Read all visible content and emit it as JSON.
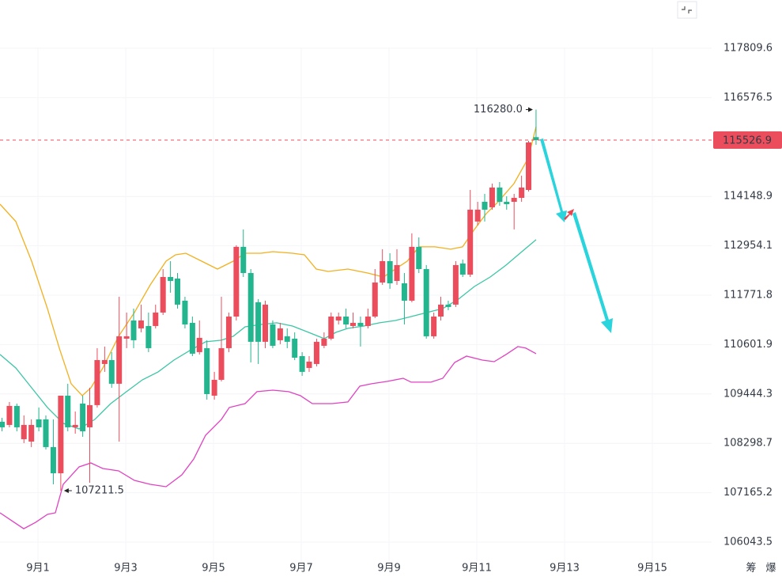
{
  "chart_data": {
    "type": "candlestick",
    "log_scale": true,
    "grid": true,
    "up_color": "#eb4d5c",
    "down_color": "#22b58e",
    "xlim": [
      0.135,
      16.351
    ],
    "ylim": [
      105597,
      119028
    ],
    "xticks": [
      {
        "value": 1,
        "label": "9月1"
      },
      {
        "value": 3,
        "label": "9月3"
      },
      {
        "value": 5,
        "label": "9月5"
      },
      {
        "value": 7,
        "label": "9月7"
      },
      {
        "value": 9,
        "label": "9月9"
      },
      {
        "value": 11,
        "label": "9月11"
      },
      {
        "value": 13,
        "label": "9月13"
      },
      {
        "value": 15,
        "label": "9月15"
      }
    ],
    "yticks": [
      117809.6,
      116576.5,
      114148.9,
      112954.1,
      111771.8,
      110601.9,
      109444.3,
      108298.7,
      107165.2,
      106043.5
    ],
    "last_price": 115526.9,
    "last_price_color": "#eb4d5c",
    "annotations": [
      {
        "text": "116280.0",
        "value": 116280
      },
      {
        "text": "107211.5",
        "value": 107211.5
      }
    ],
    "footer_buttons": [
      "筹",
      "爆"
    ],
    "x": [
      0.18,
      0.35,
      0.52,
      0.68,
      0.85,
      1.02,
      1.18,
      1.35,
      1.52,
      1.68,
      1.85,
      2.02,
      2.18,
      2.35,
      2.52,
      2.68,
      2.85,
      3.02,
      3.18,
      3.35,
      3.52,
      3.68,
      3.85,
      4.02,
      4.18,
      4.35,
      4.52,
      4.68,
      4.85,
      5.02,
      5.18,
      5.35,
      5.52,
      5.68,
      5.85,
      6.02,
      6.18,
      6.35,
      6.52,
      6.68,
      6.85,
      7.02,
      7.18,
      7.35,
      7.52,
      7.68,
      7.85,
      8.02,
      8.18,
      8.35,
      8.52,
      8.68,
      8.85,
      9.02,
      9.18,
      9.35,
      9.52,
      9.68,
      9.85,
      10.02,
      10.18,
      10.35,
      10.52,
      10.68,
      10.85,
      11.02,
      11.18,
      11.35,
      11.52,
      11.68,
      11.85,
      12.02,
      12.18,
      12.35
    ],
    "open": [
      108797,
      108724,
      109165,
      108394,
      108339,
      108853,
      108853,
      108212,
      107610,
      109404,
      108669,
      109220,
      108669,
      109184,
      110145,
      110237,
      109682,
      110741,
      111171,
      110984,
      111040,
      111040,
      111359,
      112206,
      112168,
      111641,
      111115,
      110424,
      110517,
      109404,
      109774,
      110517,
      111264,
      112929,
      112301,
      111604,
      110667,
      111077,
      110704,
      110797,
      110741,
      110330,
      110052,
      110145,
      110573,
      110741,
      111171,
      111264,
      111040,
      111115,
      111040,
      111264,
      112074,
      112586,
      112112,
      112055,
      111641,
      112929,
      112396,
      110797,
      111264,
      111547,
      111547,
      112529,
      112263,
      113540,
      114018,
      113885,
      114365,
      114018,
      114018,
      114114,
      114307,
      115600
    ],
    "high": [
      108889,
      109257,
      109220,
      108944,
      108853,
      109129,
      108944,
      108853,
      109404,
      109682,
      109036,
      109404,
      109589,
      110517,
      110555,
      110424,
      111735,
      111359,
      111453,
      111547,
      111359,
      111547,
      112396,
      112586,
      112301,
      111735,
      111264,
      111171,
      110704,
      109960,
      111735,
      111359,
      112967,
      113349,
      112396,
      111679,
      111641,
      111171,
      111115,
      110984,
      110891,
      110424,
      110330,
      110741,
      110891,
      111359,
      111359,
      111453,
      111359,
      111264,
      111453,
      112396,
      112872,
      112776,
      112872,
      112301,
      113253,
      113157,
      112491,
      111359,
      111735,
      111641,
      112586,
      112624,
      114307,
      114018,
      114211,
      114462,
      114500,
      114153,
      114211,
      114655,
      115509,
      116280
    ],
    "low": [
      108577,
      108669,
      108577,
      108303,
      108212,
      108577,
      108157,
      107357,
      107211.5,
      108577,
      108522,
      108449,
      107393,
      109129,
      109960,
      109589,
      108339,
      110517,
      110517,
      110891,
      110424,
      110984,
      111302,
      111830,
      111453,
      110984,
      110330,
      110368,
      109312,
      109312,
      109737,
      110424,
      111171,
      112206,
      110182,
      110145,
      110517,
      110517,
      110611,
      110517,
      110237,
      109867,
      109960,
      110089,
      110517,
      110704,
      111077,
      110984,
      110984,
      110555,
      110984,
      111227,
      112018,
      111924,
      112018,
      111077,
      111604,
      112301,
      110741,
      110741,
      111171,
      111415,
      111491,
      112206,
      112206,
      113445,
      113540,
      113827,
      113923,
      113827,
      113349,
      114018,
      114269,
      115412
    ],
    "close": [
      108669,
      109165,
      108669,
      108724,
      108724,
      108669,
      108212,
      107610,
      109404,
      108669,
      108724,
      108577,
      109184,
      110237,
      110237,
      109682,
      110797,
      110797,
      110704,
      111171,
      110517,
      111359,
      112206,
      112112,
      111547,
      111077,
      110387,
      110760,
      109441,
      109774,
      110517,
      111264,
      112929,
      112301,
      110667,
      110667,
      111547,
      110573,
      110984,
      110667,
      110293,
      109960,
      110200,
      110667,
      110741,
      111264,
      111264,
      111077,
      111115,
      111040,
      111264,
      112074,
      112586,
      112055,
      112491,
      111641,
      112929,
      112396,
      110797,
      111264,
      111547,
      111491,
      112491,
      112263,
      113827,
      113827,
      113827,
      114365,
      114018,
      113961,
      114114,
      114365,
      115470,
      115526.9
    ],
    "series": [
      {
        "color": "#f2b01e",
        "x": [
          0.135,
          0.495,
          0.856,
          1.216,
          1.486,
          1.757,
          2.009,
          2.207,
          2.477,
          2.838,
          3.198,
          3.559,
          3.919,
          4.135,
          4.369,
          4.73,
          5.09,
          5.45,
          5.721,
          6.081,
          6.351,
          6.802,
          7.072,
          7.342,
          7.613,
          8.063,
          8.514,
          8.874,
          9.144,
          9.414,
          9.685,
          10.045,
          10.405,
          10.676,
          10.946,
          11.216,
          11.486,
          11.847,
          12.171,
          12.351
        ],
        "values": [
          113961,
          113540,
          112586,
          111453,
          110517,
          109682,
          109404,
          109589,
          110052,
          110797,
          111359,
          112018,
          112586,
          112738,
          112776,
          112586,
          112396,
          112586,
          112776,
          112776,
          112814,
          112776,
          112738,
          112396,
          112339,
          112396,
          112301,
          112206,
          112396,
          112586,
          112929,
          112929,
          112872,
          112929,
          113349,
          113732,
          114018,
          114462,
          115080,
          115860
        ]
      },
      {
        "color": "#3cc6a6",
        "x": [
          0.135,
          0.495,
          0.856,
          1.216,
          1.577,
          1.937,
          2.297,
          2.658,
          3.018,
          3.378,
          3.739,
          4.099,
          4.459,
          4.82,
          5.18,
          5.45,
          5.721,
          6.081,
          6.441,
          6.802,
          7.162,
          7.523,
          7.793,
          8.063,
          8.423,
          8.784,
          9.144,
          9.505,
          9.865,
          10.225,
          10.586,
          10.946,
          11.306,
          11.667,
          12.027,
          12.351
        ],
        "values": [
          110368,
          110052,
          109589,
          109129,
          108761,
          108632,
          108853,
          109220,
          109497,
          109774,
          109960,
          110237,
          110461,
          110667,
          110704,
          110797,
          111021,
          111077,
          111115,
          111040,
          110891,
          110741,
          110891,
          110984,
          111040,
          111115,
          111171,
          111264,
          111359,
          111453,
          111679,
          111980,
          112206,
          112491,
          112814,
          113100
        ]
      },
      {
        "color": "#e042c2",
        "x": [
          0.135,
          0.405,
          0.676,
          0.946,
          1.216,
          1.396,
          1.577,
          1.937,
          2.207,
          2.477,
          2.838,
          3.198,
          3.559,
          3.919,
          4.279,
          4.55,
          4.82,
          5.18,
          5.36,
          5.721,
          5.991,
          6.351,
          6.712,
          6.982,
          7.252,
          7.703,
          8.063,
          8.333,
          8.604,
          8.964,
          9.324,
          9.505,
          9.955,
          10.225,
          10.495,
          10.766,
          11.126,
          11.396,
          11.667,
          11.937,
          12.117,
          12.351
        ],
        "values": [
          106707,
          106526,
          106345,
          106490,
          106671,
          106707,
          107357,
          107756,
          107847,
          107720,
          107665,
          107447,
          107357,
          107302,
          107574,
          107938,
          108485,
          108853,
          109129,
          109220,
          109497,
          109533,
          109497,
          109404,
          109220,
          109220,
          109257,
          109626,
          109682,
          109737,
          109811,
          109719,
          109719,
          109811,
          110182,
          110330,
          110237,
          110200,
          110368,
          110555,
          110517,
          110387
        ]
      }
    ]
  }
}
